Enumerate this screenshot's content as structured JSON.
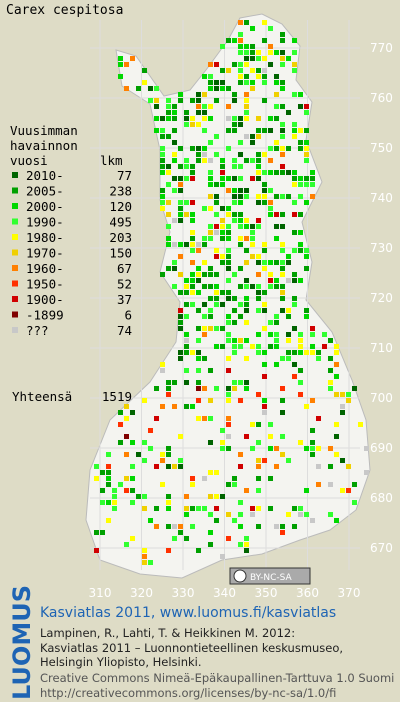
{
  "title": "Carex cespitosa",
  "legend": {
    "header": [
      "Vuusimman",
      "havainnon",
      "vuosi",
      "lkm"
    ],
    "items": [
      {
        "label": "2010-",
        "count": 77,
        "color": "#006400"
      },
      {
        "label": "2005-",
        "count": 238,
        "color": "#00a000"
      },
      {
        "label": "2000-",
        "count": 120,
        "color": "#00d800"
      },
      {
        "label": "1990-",
        "count": 495,
        "color": "#30ff30"
      },
      {
        "label": "1980-",
        "count": 203,
        "color": "#ffff00"
      },
      {
        "label": "1970-",
        "count": 150,
        "color": "#f0d000"
      },
      {
        "label": "1960-",
        "count": 67,
        "color": "#ff8000"
      },
      {
        "label": "1950-",
        "count": 52,
        "color": "#ff3000"
      },
      {
        "label": "1900-",
        "count": 37,
        "color": "#d00000"
      },
      {
        "label": "-1899",
        "count": 6,
        "color": "#800000"
      },
      {
        "label": "???",
        "count": 74,
        "color": "#c8c8c8"
      }
    ],
    "total_label": "Yhteensä",
    "total": 1519
  },
  "grid": {
    "north": [
      770,
      760,
      750,
      740,
      730,
      720,
      710,
      700,
      690,
      680,
      670
    ],
    "east": [
      310,
      320,
      330,
      340,
      350,
      360,
      370
    ]
  },
  "license_badge": "BY-NC-SA",
  "footer": {
    "logo": "LUOMUS",
    "heading": "Kasviatlas 2011, www.luomus.fi/kasviatlas",
    "lines": [
      "Lampinen, R., Lahti, T. & Heikkinen M. 2012:",
      "Kasviatlas 2011 – Luonnontieteellinen keskusmuseo,",
      "Helsingin Yliopisto, Helsinki.",
      "Creative Commons Nimeä-Epäkaupallinen-Tarttuva 1.0 Suomi",
      "http://creativecommons.org/licenses/by-nc-sa/1.0/fi"
    ]
  }
}
